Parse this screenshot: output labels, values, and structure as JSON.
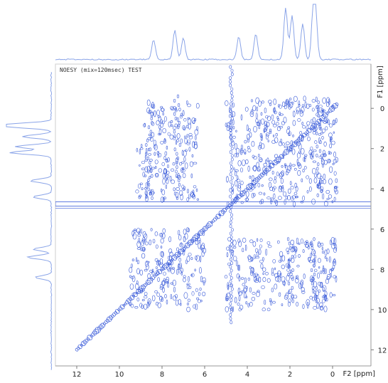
{
  "chart_data": {
    "type": "contour",
    "title": "NOESY (mix=120msec) TEST",
    "xlabel": "F2 [ppm]",
    "ylabel": "F1 [ppm]",
    "xlim": [
      13,
      -1.8
    ],
    "ylim": [
      -2.2,
      12.8
    ],
    "x_ticks": [
      12,
      10,
      8,
      6,
      4,
      2,
      0
    ],
    "y_ticks": [
      0,
      2,
      4,
      6,
      8,
      10,
      12
    ],
    "x_tick_labels": [
      "12",
      "10",
      "8",
      "6",
      "4",
      "2",
      "0"
    ],
    "y_tick_labels": [
      "0",
      "2",
      "4",
      "6",
      "8",
      "10",
      "12"
    ],
    "contour_color": "#3a5bd9",
    "projection_color": "#8aa4e8",
    "diagonal": {
      "from": [
        12,
        12
      ],
      "to": [
        -0.2,
        -0.2
      ]
    },
    "water_line_f1": 4.75,
    "cross_peak_regions": [
      {
        "f2": [
          9.2,
          6.3
        ],
        "f1": [
          -0.3,
          4.6
        ]
      },
      {
        "f2": [
          5.0,
          -0.2
        ],
        "f1": [
          -0.5,
          4.8
        ]
      },
      {
        "f2": [
          5.0,
          -0.2
        ],
        "f1": [
          6.5,
          10.0
        ]
      },
      {
        "f2": [
          9.5,
          6.0
        ],
        "f1": [
          6.0,
          10.0
        ]
      }
    ],
    "f2_projection_peaks": [
      {
        "ppm": 8.4,
        "height": 0.35
      },
      {
        "ppm": 7.4,
        "height": 0.52
      },
      {
        "ppm": 7.0,
        "height": 0.38
      },
      {
        "ppm": 4.4,
        "height": 0.4
      },
      {
        "ppm": 3.6,
        "height": 0.45
      },
      {
        "ppm": 2.2,
        "height": 0.9
      },
      {
        "ppm": 1.9,
        "height": 0.78
      },
      {
        "ppm": 1.4,
        "height": 0.62
      },
      {
        "ppm": 0.9,
        "height": 0.85
      },
      {
        "ppm": 0.8,
        "height": 0.7
      }
    ]
  }
}
